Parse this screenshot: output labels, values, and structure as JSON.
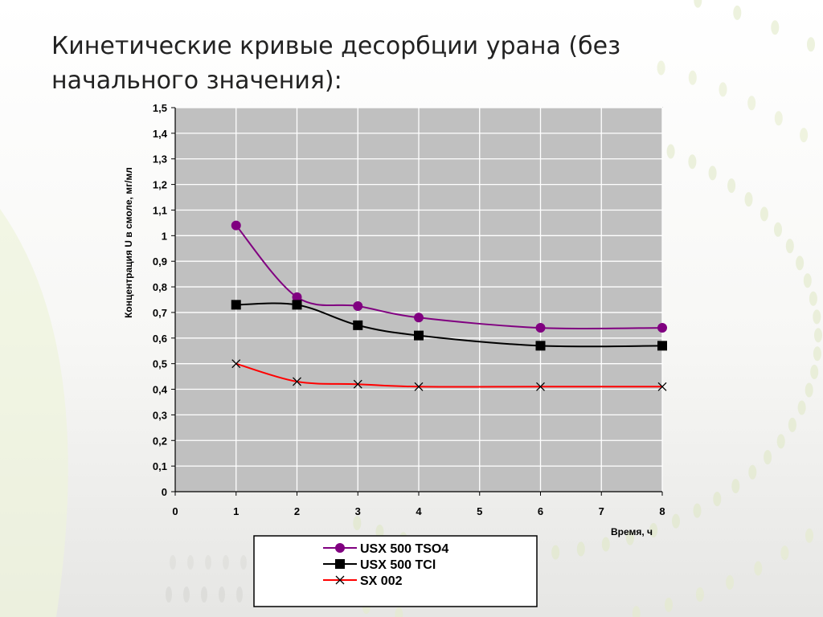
{
  "slide": {
    "title": "Кинетические кривые десорбции урана (без начального значения):"
  },
  "chart_data": {
    "type": "line",
    "title": "",
    "xlabel": "Время, ч",
    "ylabel": "Концентрация U в смоле, мг/мл",
    "xlim": [
      0,
      8
    ],
    "ylim": [
      0,
      1.5
    ],
    "x_ticks": [
      "0",
      "1",
      "2",
      "3",
      "4",
      "5",
      "6",
      "7",
      "8"
    ],
    "y_ticks": [
      "0",
      "0,1",
      "0,2",
      "0,3",
      "0,4",
      "0,5",
      "0,6",
      "0,7",
      "0,8",
      "0,9",
      "1",
      "1,1",
      "1,2",
      "1,3",
      "1,4",
      "1,5"
    ],
    "grid": true,
    "legend_position": "bottom-center",
    "series": [
      {
        "name": "USX 500 TSO4",
        "marker": "circle",
        "color": "#800080",
        "x": [
          1,
          2,
          3,
          4,
          6,
          8
        ],
        "y": [
          1.04,
          0.76,
          0.725,
          0.68,
          0.64,
          0.64
        ]
      },
      {
        "name": "USX 500 TCl",
        "marker": "square",
        "color": "#000000",
        "x": [
          1,
          2,
          3,
          4,
          6,
          8
        ],
        "y": [
          0.73,
          0.73,
          0.65,
          0.61,
          0.57,
          0.57
        ]
      },
      {
        "name": "SX 002",
        "marker": "x",
        "color": "#ff0000",
        "x": [
          1,
          2,
          3,
          4,
          6,
          8
        ],
        "y": [
          0.5,
          0.43,
          0.42,
          0.41,
          0.41,
          0.41
        ]
      }
    ]
  }
}
